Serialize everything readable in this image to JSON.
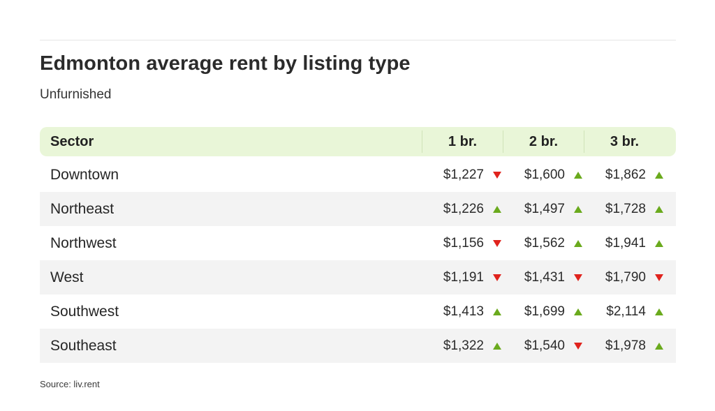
{
  "chart_data": {
    "type": "table",
    "title": "Edmonton average rent by listing type",
    "subtitle": "Unfurnished",
    "columns": [
      "Sector",
      "1 br.",
      "2 br.",
      "3 br."
    ],
    "rows": [
      {
        "sector": "Downtown",
        "values": [
          "$1,227",
          "$1,600",
          "$1,862"
        ],
        "trends": [
          "down",
          "up",
          "up"
        ]
      },
      {
        "sector": "Northeast",
        "values": [
          "$1,226",
          "$1,497",
          "$1,728"
        ],
        "trends": [
          "up",
          "up",
          "up"
        ]
      },
      {
        "sector": "Northwest",
        "values": [
          "$1,156",
          "$1,562",
          "$1,941"
        ],
        "trends": [
          "down",
          "up",
          "up"
        ]
      },
      {
        "sector": "West",
        "values": [
          "$1,191",
          "$1,431",
          "$1,790"
        ],
        "trends": [
          "down",
          "down",
          "down"
        ]
      },
      {
        "sector": "Southwest",
        "values": [
          "$1,413",
          "$1,699",
          "$2,114"
        ],
        "trends": [
          "up",
          "up",
          "up"
        ]
      },
      {
        "sector": "Southeast",
        "values": [
          "$1,322",
          "$1,540",
          "$1,978"
        ],
        "trends": [
          "up",
          "down",
          "up"
        ]
      }
    ],
    "source": "Source: liv.rent"
  },
  "colors": {
    "header_bg": "#e9f6d8",
    "row_shade": "#f3f3f3",
    "up": "#6aaa1d",
    "down": "#e0231d"
  },
  "icons": {
    "up": "triangle-up-icon",
    "down": "triangle-down-icon"
  }
}
